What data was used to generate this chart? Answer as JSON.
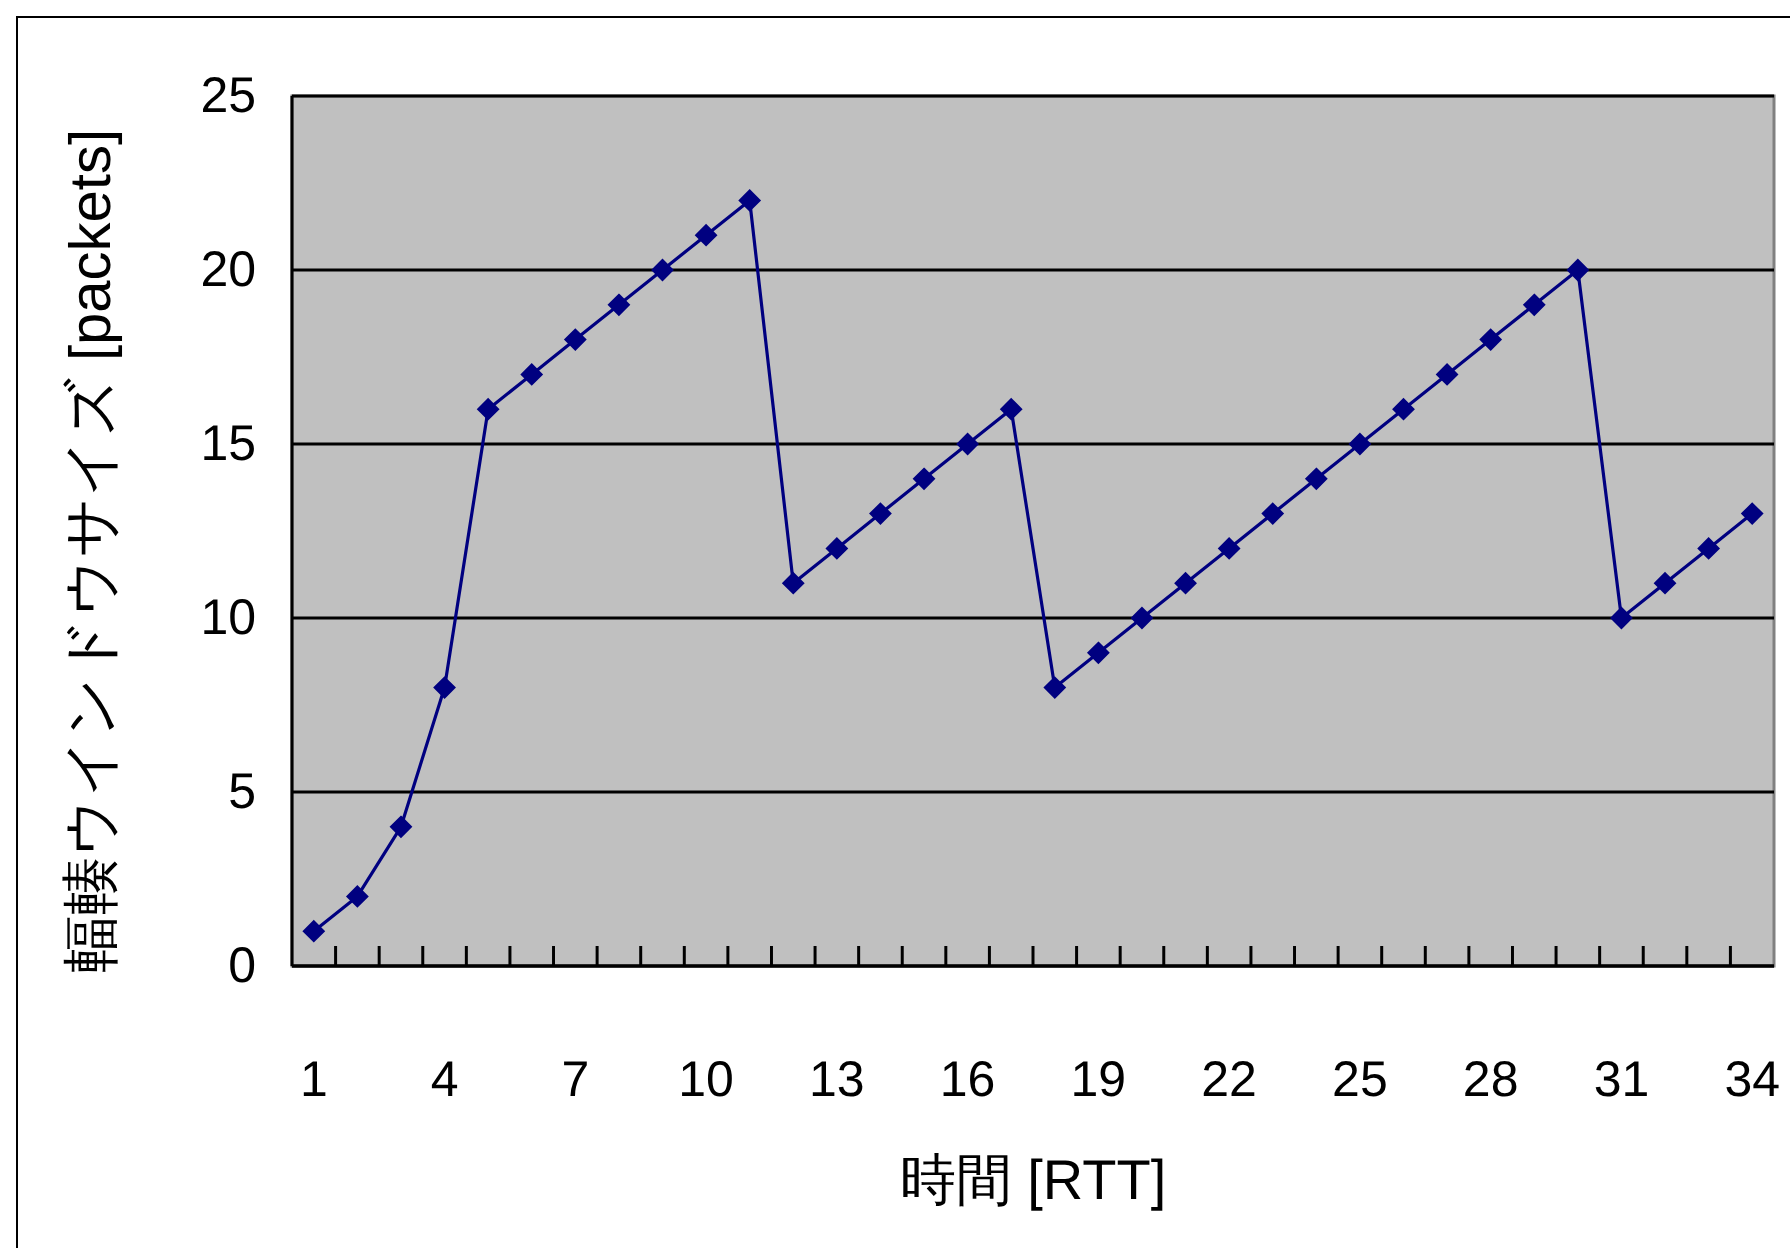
{
  "chart_data": {
    "type": "line",
    "xlabel": "時間 [RTT]",
    "ylabel": "輻輳ウインドウサイズ [packets]",
    "categories": [
      "1",
      null,
      null,
      "4",
      null,
      null,
      "7",
      null,
      null,
      "10",
      null,
      null,
      "13",
      null,
      null,
      "16",
      null,
      null,
      "19",
      null,
      null,
      "22",
      null,
      null,
      "25",
      null,
      null,
      "28",
      null,
      null,
      "31",
      null,
      null,
      "34"
    ],
    "series": [
      {
        "color": "#000080",
        "values": [
          1,
          2,
          4,
          8,
          16,
          17,
          18,
          19,
          20,
          21,
          22,
          11,
          12,
          13,
          14,
          15,
          16,
          8,
          9,
          10,
          11,
          12,
          13,
          14,
          15,
          16,
          17,
          18,
          19,
          20,
          10,
          11,
          12,
          13
        ]
      }
    ],
    "ylim": [
      0,
      25
    ],
    "yticks": [
      0,
      5,
      10,
      15,
      20,
      25
    ],
    "grid": "y",
    "marker": "diamond",
    "line_style": "solid"
  }
}
